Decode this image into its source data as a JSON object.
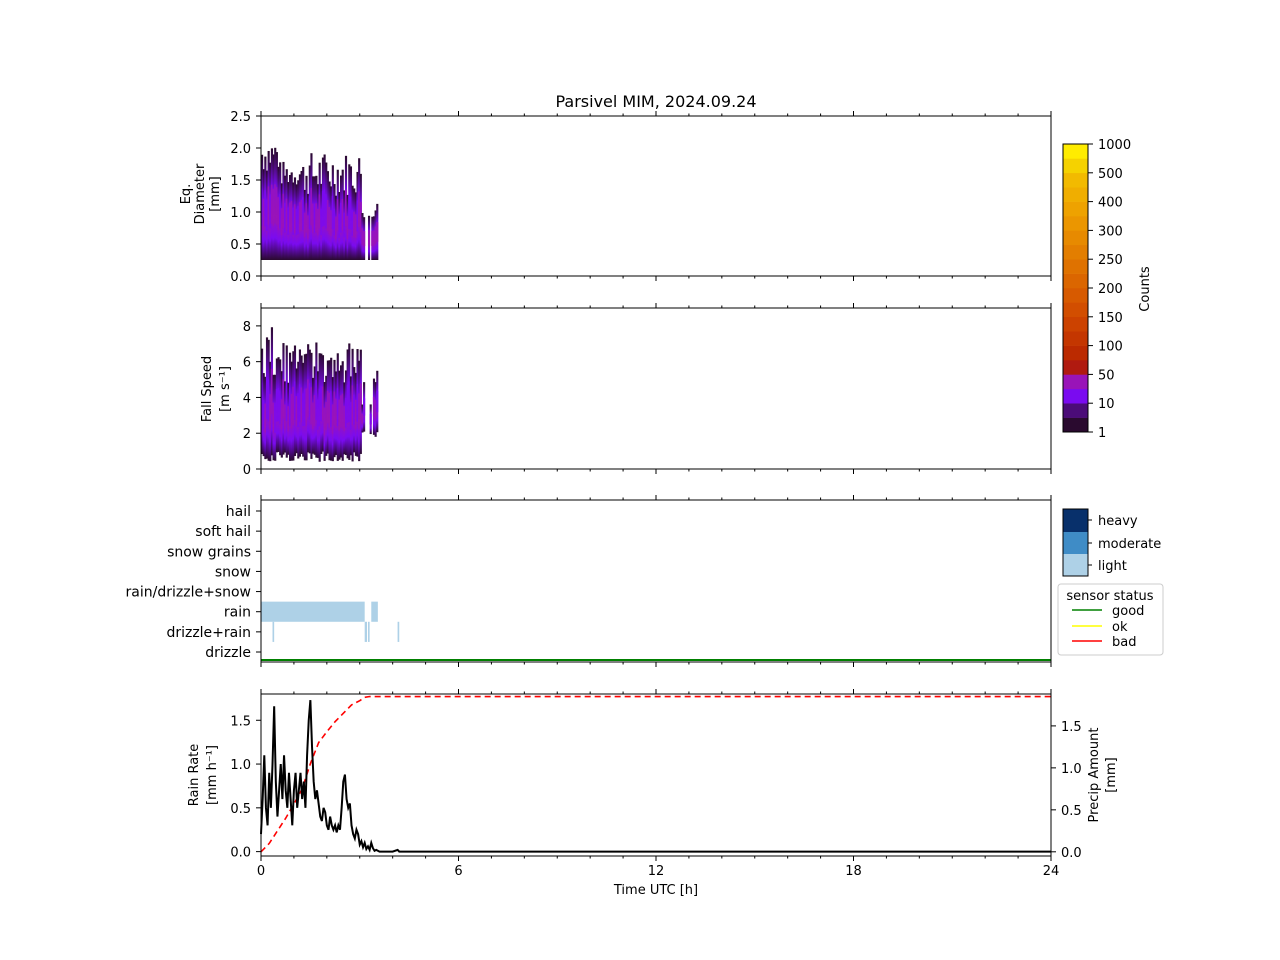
{
  "title": "Parsivel MIM, 2024.09.24",
  "xaxis": {
    "label": "Time UTC [h]",
    "range": [
      0,
      24
    ],
    "major_ticks": [
      0,
      6,
      12,
      18,
      24
    ],
    "tick_labels": [
      "0",
      "6",
      "12",
      "18",
      "24"
    ]
  },
  "colorbar": {
    "label": "Counts",
    "tick_labels": [
      "1",
      "10",
      "50",
      "100",
      "150",
      "200",
      "250",
      "300",
      "400",
      "500",
      "1000"
    ],
    "colors": [
      "#2a0a2f",
      "#4b0c78",
      "#7a0bf0",
      "#9914b8",
      "#b01a10",
      "#bb2a00",
      "#c43600",
      "#cc4200",
      "#d24e00",
      "#d75a00",
      "#db6600",
      "#df7200",
      "#e37e00",
      "#e78a00",
      "#eb9600",
      "#eea200",
      "#f0ae00",
      "#f2ba00",
      "#f5d200",
      "#ffec00"
    ]
  },
  "precip_legend": {
    "labels": [
      "heavy",
      "moderate",
      "light"
    ],
    "colors": [
      "#08306b",
      "#3f8cc6",
      "#aed1e7"
    ]
  },
  "status_legend": {
    "title": "sensor status",
    "items": [
      {
        "label": "good",
        "color": "#008000"
      },
      {
        "label": "ok",
        "color": "#ffff00"
      },
      {
        "label": "bad",
        "color": "#ff0000"
      }
    ]
  },
  "chart_data": [
    {
      "type": "heatmap",
      "ylabel": [
        "Eq.",
        "Diameter",
        "[mm]"
      ],
      "ylim": [
        0,
        2.5
      ],
      "yticks": [
        "0.0",
        "0.5",
        "1.0",
        "1.5",
        "2.0",
        "2.5"
      ],
      "data_extent_hours": [
        0,
        3.5
      ]
    },
    {
      "type": "heatmap",
      "ylabel": [
        "Fall Speed",
        "[m s⁻¹]"
      ],
      "ylim": [
        0,
        9
      ],
      "yticks": [
        "0",
        "2",
        "4",
        "6",
        "8"
      ],
      "data_extent_hours": [
        0,
        3.5
      ]
    },
    {
      "type": "bar",
      "categories": [
        "hail",
        "soft hail",
        "snow grains",
        "snow",
        "rain/drizzle+snow",
        "rain",
        "drizzle+rain",
        "drizzle"
      ],
      "segments": [
        {
          "category": "rain",
          "start": 0.0,
          "end": 3.15,
          "intensity": "light"
        },
        {
          "category": "rain",
          "start": 3.35,
          "end": 3.55,
          "intensity": "light"
        },
        {
          "category": "drizzle+rain",
          "start": 0.35,
          "end": 0.4,
          "intensity": "light"
        },
        {
          "category": "drizzle+rain",
          "start": 3.15,
          "end": 3.22,
          "intensity": "light"
        },
        {
          "category": "drizzle+rain",
          "start": 3.25,
          "end": 3.3,
          "intensity": "light"
        },
        {
          "category": "drizzle+rain",
          "start": 4.15,
          "end": 4.2,
          "intensity": "light"
        }
      ],
      "sensor_status": [
        {
          "start": 0,
          "end": 24,
          "status": "good"
        }
      ]
    },
    {
      "type": "line",
      "ylabel": [
        "Rain Rate",
        "[mm h⁻¹]"
      ],
      "y2label": [
        "Precip Amount",
        "[mm]"
      ],
      "ylim": [
        -0.05,
        1.8
      ],
      "yticks": [
        "0.0",
        "0.5",
        "1.0",
        "1.5"
      ],
      "y2lim": [
        -0.05,
        1.88
      ],
      "y2ticks": [
        "0.0",
        "0.5",
        "1.0",
        "1.5"
      ],
      "series": [
        {
          "color": "#000000",
          "style": "solid",
          "x": [
            0,
            0.05,
            0.1,
            0.15,
            0.2,
            0.25,
            0.3,
            0.35,
            0.4,
            0.45,
            0.5,
            0.55,
            0.6,
            0.65,
            0.7,
            0.75,
            0.8,
            0.85,
            0.9,
            0.95,
            1.0,
            1.05,
            1.1,
            1.15,
            1.2,
            1.25,
            1.3,
            1.35,
            1.4,
            1.45,
            1.5,
            1.55,
            1.6,
            1.65,
            1.7,
            1.75,
            1.8,
            1.85,
            1.9,
            1.95,
            2.0,
            2.05,
            2.1,
            2.15,
            2.2,
            2.25,
            2.3,
            2.35,
            2.4,
            2.45,
            2.5,
            2.55,
            2.6,
            2.65,
            2.7,
            2.75,
            2.8,
            2.85,
            2.9,
            2.95,
            3.0,
            3.05,
            3.1,
            3.15,
            3.2,
            3.25,
            3.3,
            3.35,
            3.4,
            3.45,
            3.5,
            3.6,
            3.8,
            4.0,
            4.15,
            4.2,
            4.3,
            5,
            24
          ],
          "y": [
            0.2,
            0.6,
            1.1,
            0.5,
            0.3,
            0.9,
            0.5,
            1.0,
            1.66,
            0.8,
            0.4,
            0.7,
            1.0,
            0.6,
            1.1,
            0.7,
            0.5,
            0.9,
            0.6,
            0.3,
            0.7,
            0.9,
            0.5,
            0.7,
            0.9,
            0.6,
            0.8,
            0.5,
            1.1,
            1.5,
            1.73,
            1.2,
            0.8,
            0.6,
            0.7,
            0.55,
            0.4,
            0.35,
            0.5,
            0.45,
            0.3,
            0.25,
            0.4,
            0.3,
            0.25,
            0.3,
            0.22,
            0.3,
            0.25,
            0.5,
            0.8,
            0.88,
            0.6,
            0.5,
            0.55,
            0.3,
            0.2,
            0.15,
            0.25,
            0.2,
            0.08,
            0.12,
            0.05,
            0.1,
            0.03,
            0.06,
            0.02,
            0.1,
            0.04,
            0.01,
            0.02,
            0.0,
            0.0,
            0.0,
            0.02,
            0.0,
            0.0,
            0.0,
            0.0
          ]
        },
        {
          "color": "#ff0000",
          "style": "dashed",
          "axis": "right",
          "x": [
            0,
            0.25,
            0.5,
            0.75,
            1.0,
            1.25,
            1.5,
            1.75,
            2.0,
            2.25,
            2.5,
            2.75,
            3.0,
            3.15,
            3.3,
            3.5,
            24
          ],
          "y": [
            0,
            0.1,
            0.25,
            0.4,
            0.57,
            0.75,
            1.05,
            1.3,
            1.43,
            1.55,
            1.65,
            1.75,
            1.8,
            1.84,
            1.85,
            1.85,
            1.85
          ]
        }
      ]
    }
  ]
}
